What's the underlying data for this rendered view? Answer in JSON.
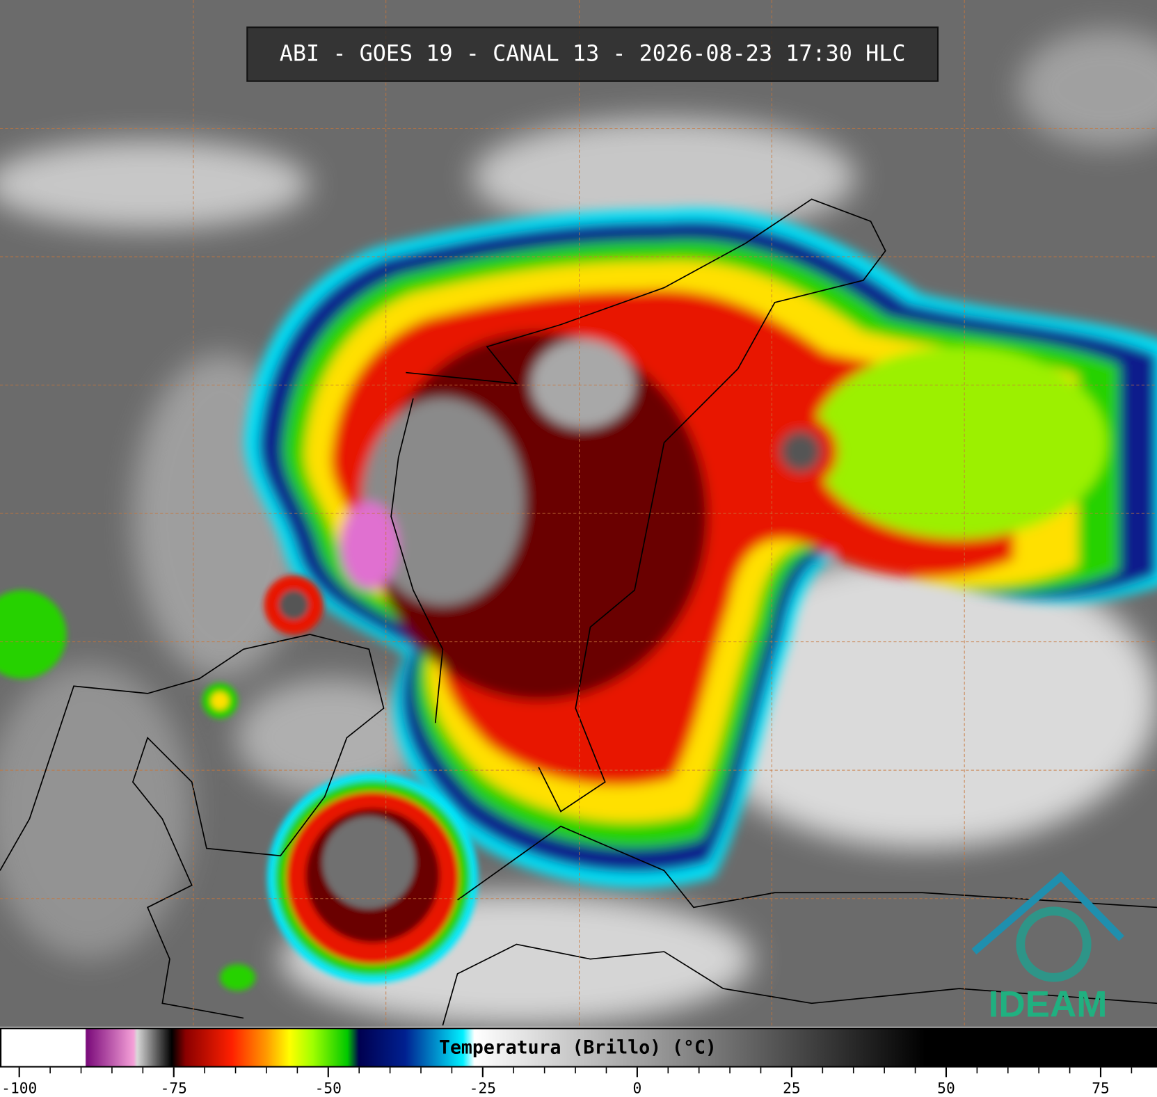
{
  "header": {
    "title": "ABI - GOES 19 - CANAL 13 - 2026-08-23 17:30 HLC"
  },
  "colorbar": {
    "label": "Temperatura (Brillo) (°C)",
    "xlim": [
      -103,
      84
    ],
    "xticks": [
      -100,
      -75,
      -50,
      -25,
      0,
      25,
      50,
      75
    ],
    "minor_ticks": [
      -95,
      -90,
      -85,
      -80,
      -70,
      -65,
      -60,
      -55,
      -45,
      -40,
      -35,
      -30,
      -20,
      -15,
      -10,
      -5,
      5,
      10,
      15,
      20,
      30,
      35,
      40,
      45,
      55,
      60,
      65,
      70,
      80
    ]
  },
  "logo": {
    "text": "IDEAM"
  }
}
